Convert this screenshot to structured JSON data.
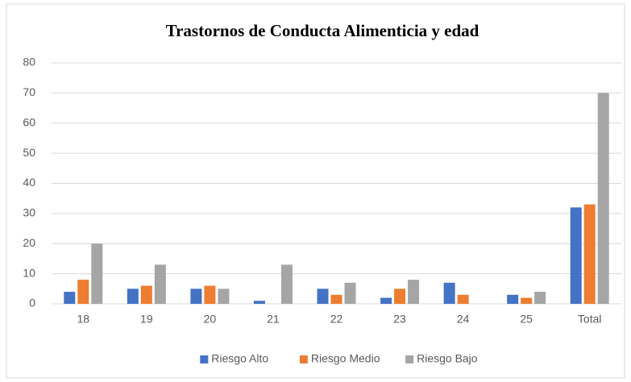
{
  "chart_data": {
    "type": "bar",
    "title": "Trastornos de Conducta Alimenticia y edad",
    "categories": [
      "18",
      "19",
      "20",
      "21",
      "22",
      "23",
      "24",
      "25",
      "Total"
    ],
    "series": [
      {
        "name": "Riesgo Alto",
        "color": "#4472c4",
        "values": [
          4,
          5,
          5,
          1,
          5,
          2,
          7,
          3,
          32
        ]
      },
      {
        "name": "Riesgo Medio",
        "color": "#ed7d31",
        "values": [
          8,
          6,
          6,
          0,
          3,
          5,
          3,
          2,
          33
        ]
      },
      {
        "name": "Riesgo Bajo",
        "color": "#a5a5a5",
        "values": [
          20,
          13,
          5,
          13,
          7,
          8,
          0,
          4,
          70
        ]
      }
    ],
    "ylim": [
      0,
      80
    ],
    "yticks": [
      0,
      10,
      20,
      30,
      40,
      50,
      60,
      70,
      80
    ],
    "grid": true,
    "legend": "bottom"
  }
}
